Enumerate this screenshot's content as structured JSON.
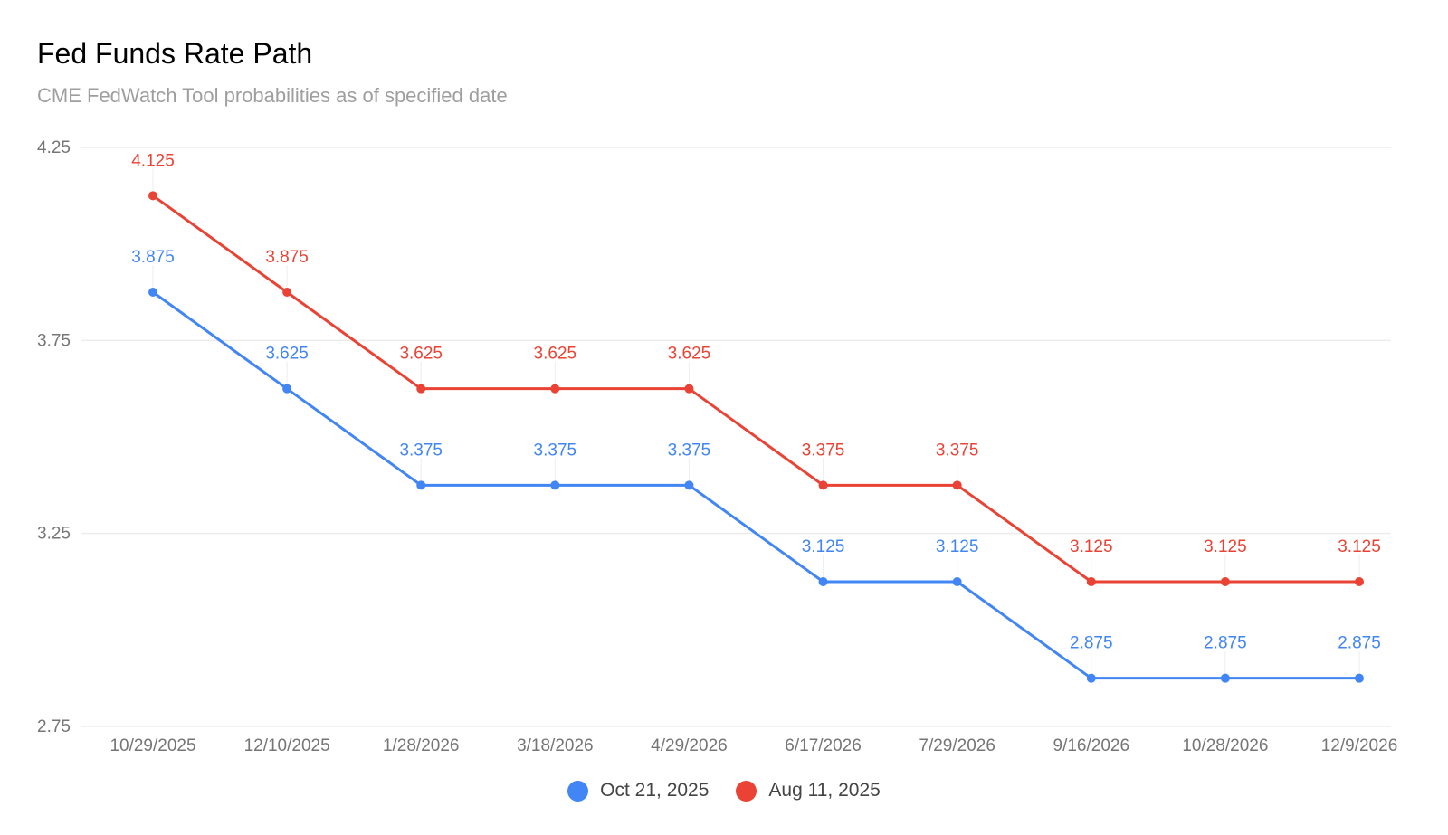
{
  "chart_data": {
    "type": "line",
    "title": "Fed Funds Rate Path",
    "subtitle": "CME FedWatch Tool probabilities as of specified date",
    "xlabel": "",
    "ylabel": "",
    "categories": [
      "10/29/2025",
      "12/10/2025",
      "1/28/2026",
      "3/18/2026",
      "4/29/2026",
      "6/17/2026",
      "7/29/2026",
      "9/16/2026",
      "10/28/2026",
      "12/9/2026"
    ],
    "ylim": [
      2.75,
      4.25
    ],
    "yticks": [
      "4.25",
      "3.75",
      "3.25",
      "2.75"
    ],
    "grid": true,
    "legend_position": "bottom",
    "series": [
      {
        "name": "Oct 21, 2025",
        "color": "#4285f4",
        "values": [
          3.875,
          3.625,
          3.375,
          3.375,
          3.375,
          3.125,
          3.125,
          2.875,
          2.875,
          2.875
        ],
        "labels": [
          "3.875",
          "3.625",
          "3.375",
          "3.375",
          "3.375",
          "3.125",
          "3.125",
          "2.875",
          "2.875",
          "2.875"
        ]
      },
      {
        "name": "Aug 11, 2025",
        "color": "#ea4335",
        "values": [
          4.125,
          3.875,
          3.625,
          3.625,
          3.625,
          3.375,
          3.375,
          3.125,
          3.125,
          3.125
        ],
        "labels": [
          "4.125",
          "3.875",
          "3.625",
          "3.625",
          "3.625",
          "3.375",
          "3.375",
          "3.125",
          "3.125",
          "3.125"
        ]
      }
    ]
  }
}
